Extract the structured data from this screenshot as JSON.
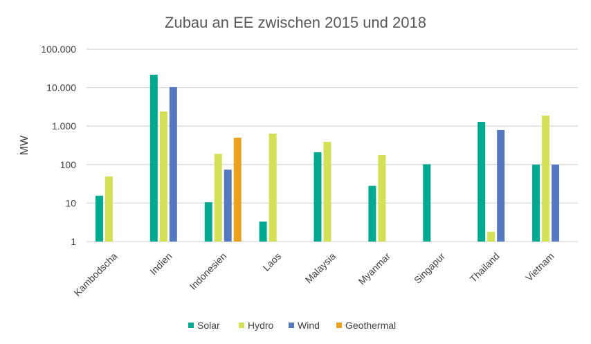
{
  "chart_data": {
    "type": "bar",
    "title": "Zubau an EE zwischen 2015 und 2018",
    "xlabel": "",
    "ylabel": "MW",
    "yscale": "log",
    "ylim": [
      1,
      100000
    ],
    "yticks": [
      1,
      10,
      100,
      1000,
      10000,
      100000
    ],
    "ytick_labels": [
      "1",
      "10",
      "100",
      "1.000",
      "10.000",
      "100.000"
    ],
    "grid": true,
    "legend": "bottom",
    "categories": [
      "Kambodscha",
      "Indien",
      "Indonesien",
      "Laos",
      "Malaysia",
      "Myanmar",
      "Singapur",
      "Thailand",
      "Vietnam"
    ],
    "series": [
      {
        "name": "Solar",
        "color": "#00A98F",
        "values": [
          15.5,
          21700,
          10.5,
          3.3,
          210,
          28,
          102,
          1290,
          100
        ]
      },
      {
        "name": "Hydro",
        "color": "#D4E157",
        "values": [
          49,
          2400,
          190,
          640,
          390,
          178,
          null,
          1.8,
          1880
        ]
      },
      {
        "name": "Wind",
        "color": "#5479C0",
        "values": [
          null,
          10300,
          74,
          null,
          null,
          null,
          null,
          790,
          100
        ]
      },
      {
        "name": "Geothermal",
        "color": "#E8A21E",
        "values": [
          null,
          null,
          500,
          null,
          null,
          null,
          null,
          null,
          null
        ]
      }
    ]
  }
}
